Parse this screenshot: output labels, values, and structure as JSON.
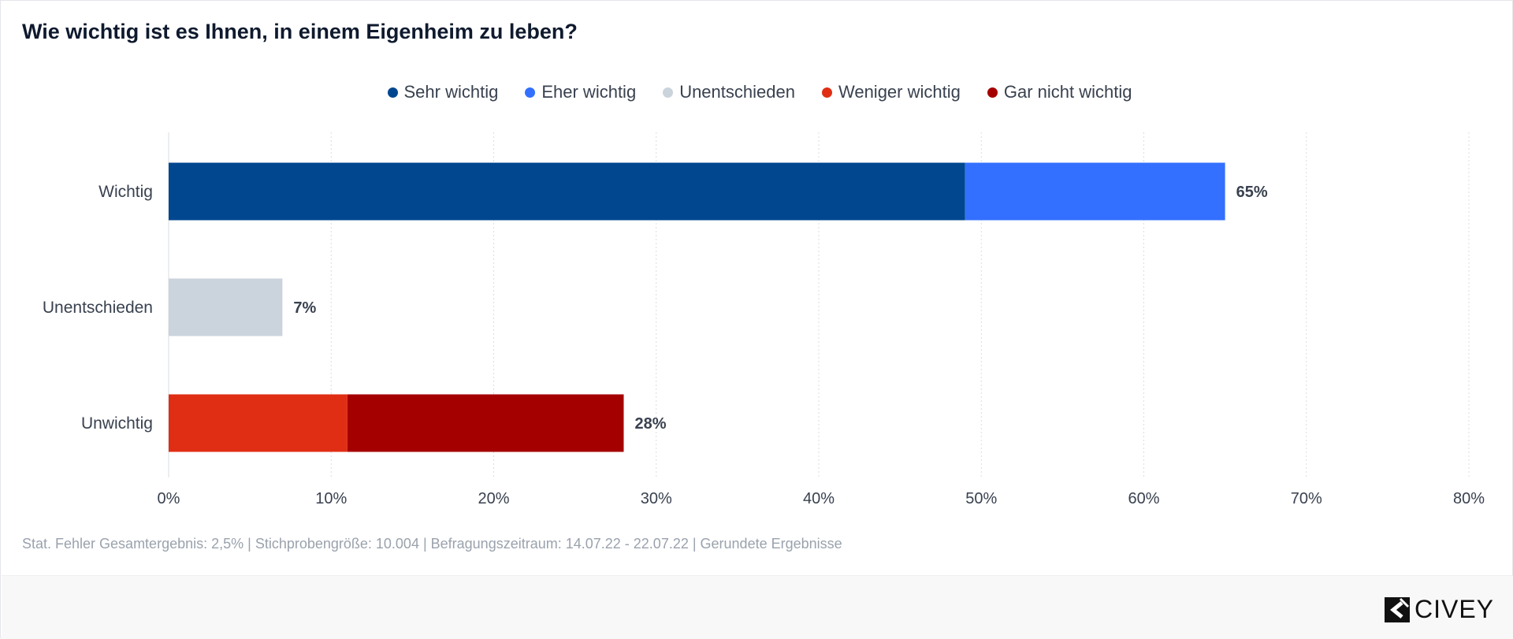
{
  "header": {
    "title": "Wie wichtig ist es Ihnen, in einem Eigenheim zu leben?"
  },
  "chart_data": {
    "type": "bar",
    "orientation": "horizontal",
    "stacked": true,
    "title": "Wie wichtig ist es Ihnen, in einem Eigenheim zu leben?",
    "categories": [
      "Wichtig",
      "Unentschieden",
      "Unwichtig"
    ],
    "series": [
      {
        "name": "Sehr wichtig",
        "color": "#00478f",
        "values": [
          49,
          0,
          0
        ]
      },
      {
        "name": "Eher wichtig",
        "color": "#3370ff",
        "values": [
          16,
          0,
          0
        ]
      },
      {
        "name": "Unentschieden",
        "color": "#cbd3dc",
        "values": [
          0,
          7,
          0
        ]
      },
      {
        "name": "Weniger wichtig",
        "color": "#e02e14",
        "values": [
          0,
          0,
          11
        ]
      },
      {
        "name": "Gar nicht wichtig",
        "color": "#a50000",
        "values": [
          0,
          0,
          17
        ]
      }
    ],
    "totals": [
      "65%",
      "7%",
      "28%"
    ],
    "xlim": [
      0,
      80
    ],
    "xticks": [
      "0%",
      "10%",
      "20%",
      "30%",
      "40%",
      "50%",
      "60%",
      "70%",
      "80%"
    ],
    "legend_position": "top-center",
    "grid": true
  },
  "footnote": "Stat. Fehler Gesamtergebnis: 2,5% | Stichprobengröße: 10.004 | Befragungszeitraum: 14.07.22 - 22.07.22 | Gerundete Ergebnisse",
  "brand": {
    "name": "CIVEY",
    "icon": "civey-logo-icon"
  }
}
